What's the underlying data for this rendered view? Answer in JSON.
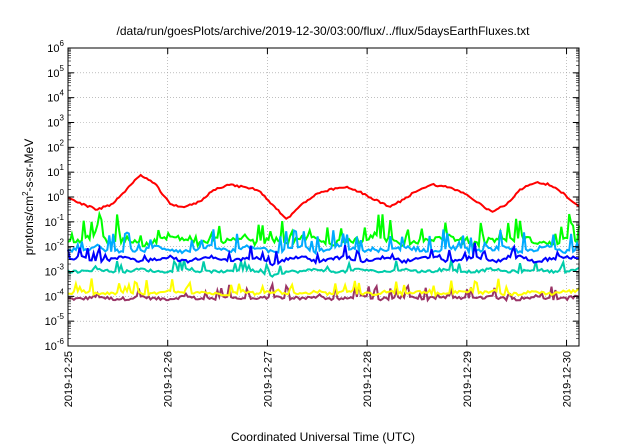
{
  "chart_data": {
    "type": "line",
    "title": "/data/run/goesPlots/archive/2019-12-30/03:00/flux/../flux/5daysEarthFluxes.txt",
    "xlabel": "Coordinated Universal Time (UTC)",
    "ylabel_parts": [
      "protons/cm",
      "2",
      "-s-sr-MeV"
    ],
    "y_scale": "log",
    "y_range_exponents": [
      -6,
      6
    ],
    "y_tick_exponents": [
      -6,
      -5,
      -4,
      -3,
      -2,
      -1,
      0,
      1,
      2,
      3,
      4,
      5,
      6
    ],
    "y_tick_base": "10",
    "x_range_days": [
      "2019-12-25",
      "2019-12-30 03:00"
    ],
    "x_tick_labels": [
      "2019-12-25",
      "2019-12-26",
      "2019-12-27",
      "2019-12-28",
      "2019-12-29",
      "2019-12-30"
    ],
    "grid": true,
    "legend": "none",
    "series": [
      {
        "color": "#ff0000",
        "base_log": [
          0.0,
          -0.3,
          -0.5,
          -0.3,
          0.3,
          0.9,
          0.5,
          -0.3,
          -0.4,
          -0.2,
          0.3,
          0.5,
          0.4,
          0.3,
          -0.3,
          -0.9,
          -0.3,
          0.1,
          0.3,
          0.4,
          0.2,
          -0.1,
          -0.4,
          -0.1,
          0.3,
          0.5,
          0.4,
          0.2,
          -0.2,
          -0.6,
          -0.3,
          0.3,
          0.6,
          0.5,
          0.1,
          -0.4
        ]
      },
      {
        "color": "#00ff00",
        "base_log": [
          -1.9,
          -1.7,
          -1.6,
          -1.8,
          -1.7,
          -1.9,
          -1.8,
          -1.6,
          -1.7,
          -1.9,
          -1.7,
          -1.8,
          -1.6,
          -1.9,
          -1.7,
          -1.8,
          -1.6,
          -1.7,
          -1.9,
          -1.7,
          -1.8,
          -1.6,
          -1.7,
          -1.9,
          -1.8,
          -1.7,
          -1.6,
          -1.8,
          -1.9,
          -1.7,
          -1.8,
          -1.6,
          -1.8,
          -1.9,
          -1.7,
          -1.8
        ]
      },
      {
        "color": "#00aaff",
        "base_log": [
          -2.1,
          -2.2,
          -2.0,
          -2.2,
          -2.1,
          -2.2,
          -2.0,
          -2.1,
          -2.2,
          -2.1,
          -2.0,
          -2.2,
          -2.1,
          -2.0,
          -2.2,
          -2.1,
          -2.0,
          -2.2,
          -2.1,
          -2.0,
          -2.2,
          -2.1,
          -2.2,
          -2.0,
          -2.1,
          -2.2,
          -2.0,
          -2.1,
          -2.2,
          -2.1,
          -2.0,
          -2.2,
          -2.1,
          -2.0,
          -2.2,
          -2.1
        ]
      },
      {
        "color": "#0000ff",
        "base_log": [
          -2.5,
          -2.4,
          -2.6,
          -2.5,
          -2.4,
          -2.6,
          -2.5,
          -2.4,
          -2.6,
          -2.5,
          -2.4,
          -2.6,
          -2.5,
          -2.4,
          -2.7,
          -2.5,
          -2.4,
          -2.6,
          -2.5,
          -2.4,
          -2.6,
          -2.5,
          -2.4,
          -2.6,
          -2.5,
          -2.4,
          -2.6,
          -2.5,
          -2.4,
          -2.6,
          -2.5,
          -2.4,
          -2.6,
          -2.5,
          -2.4,
          -2.5
        ]
      },
      {
        "color": "#00ccaa",
        "base_log": [
          -3.0,
          -3.0,
          -2.9,
          -3.0,
          -3.0,
          -2.9,
          -3.0,
          -3.0,
          -2.9,
          -3.0,
          -3.0,
          -3.0,
          -2.9,
          -3.0,
          -3.2,
          -3.0,
          -3.0,
          -2.9,
          -3.0,
          -3.0,
          -2.9,
          -3.0,
          -3.0,
          -2.9,
          -3.0,
          -3.0,
          -2.9,
          -3.0,
          -3.0,
          -2.9,
          -3.0,
          -3.0,
          -2.9,
          -3.0,
          -3.0,
          -2.9
        ]
      },
      {
        "color": "#ffff00",
        "base_log": [
          -3.9,
          -3.8,
          -3.9,
          -3.9,
          -3.8,
          -3.9,
          -3.9,
          -3.8,
          -3.9,
          -3.8,
          -3.9,
          -3.9,
          -3.8,
          -3.9,
          -3.8,
          -3.9,
          -3.9,
          -3.8,
          -3.9,
          -3.8,
          -3.9,
          -3.9,
          -3.8,
          -3.9,
          -3.8,
          -3.9,
          -3.9,
          -3.8,
          -3.9,
          -3.8,
          -3.9,
          -3.9,
          -3.8,
          -3.9,
          -3.8,
          -3.8
        ]
      },
      {
        "color": "#993366",
        "base_log": [
          -4.1,
          -4.1,
          -4.0,
          -4.1,
          -4.1,
          -4.0,
          -4.1,
          -4.1,
          -4.0,
          -4.1,
          -4.1,
          -4.0,
          -4.1,
          -4.1,
          -4.0,
          -4.1,
          -4.1,
          -4.0,
          -4.1,
          -4.1,
          -4.0,
          -4.1,
          -4.1,
          -4.0,
          -4.1,
          -4.1,
          -4.0,
          -4.1,
          -4.1,
          -4.0,
          -4.1,
          -4.1,
          -4.0,
          -4.1,
          -4.1,
          -4.0
        ]
      }
    ]
  }
}
